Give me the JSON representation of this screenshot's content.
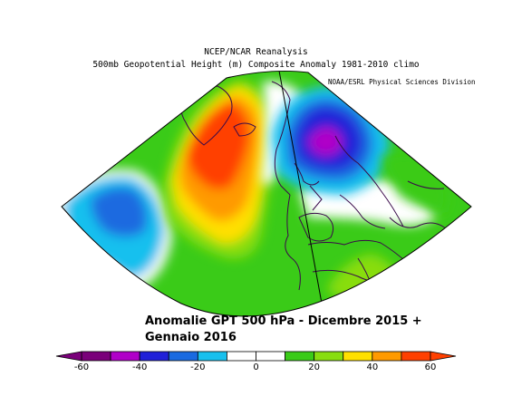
{
  "header": {
    "line1": "NCEP/NCAR Reanalysis",
    "line2": "500mb Geopotential Height (m) Composite Anomaly 1981-2010 climo",
    "credit": "NOAA/ESRL Physical Sciences Division"
  },
  "caption": {
    "line1": "Anomalie GPT 500 hPa - Dicembre 2015 +",
    "line2": "Gennaio 2016"
  },
  "colorbar": {
    "ticks": [
      "-60",
      "-40",
      "-20",
      "0",
      "20",
      "40",
      "60"
    ],
    "colors": [
      "#7a007a",
      "#b000c8",
      "#2020d8",
      "#1a6ae0",
      "#18c0ee",
      "#ffffff",
      "#ffffff",
      "#3acb18",
      "#88dd10",
      "#ffe000",
      "#ff9a00",
      "#ff4000"
    ]
  },
  "legend_colors": {
    "strong_negative": "#2020d8",
    "moderate_negative": "#1a6ae0",
    "weak_negative": "#18c0ee",
    "neutral": "#ffffff",
    "weak_positive": "#3acb18",
    "moderate_positive": "#88dd10",
    "positive": "#ffe000",
    "high_positive": "#ff9a00",
    "strong_positive": "#ff4000",
    "extreme_negative": "#b000c8"
  }
}
